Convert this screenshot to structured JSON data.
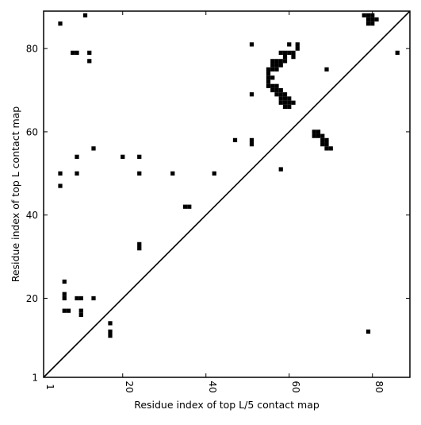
{
  "chart_data": {
    "type": "scatter",
    "xlabel": "Residue index of top L/5 contact map",
    "ylabel": "Residue index of top L contact map",
    "xlim": [
      1,
      89
    ],
    "ylim": [
      1,
      89
    ],
    "x_ticks": [
      1,
      20,
      40,
      60,
      80
    ],
    "y_ticks": [
      1,
      20,
      40,
      60,
      80
    ],
    "marker": "filled-square",
    "marker_color": "#000000",
    "diagonal_line": true,
    "series": [
      {
        "region": "above-diagonal",
        "points": [
          [
            5,
            86
          ],
          [
            11,
            88
          ],
          [
            9,
            79
          ],
          [
            8,
            79
          ],
          [
            12,
            79
          ],
          [
            12,
            77
          ],
          [
            5,
            50
          ],
          [
            9,
            54
          ],
          [
            13,
            56
          ],
          [
            9,
            50
          ],
          [
            5,
            47
          ],
          [
            20,
            54
          ],
          [
            24,
            54
          ],
          [
            24,
            50
          ],
          [
            32,
            50
          ],
          [
            42,
            50
          ],
          [
            24,
            33
          ],
          [
            24,
            32
          ],
          [
            35,
            42
          ],
          [
            36,
            42
          ],
          [
            6,
            24
          ],
          [
            6,
            21
          ],
          [
            6,
            20
          ],
          [
            6,
            17
          ],
          [
            7,
            17
          ],
          [
            9,
            20
          ],
          [
            10,
            20
          ],
          [
            10,
            17
          ],
          [
            10,
            16
          ],
          [
            13,
            20
          ],
          [
            17,
            14
          ],
          [
            17,
            12
          ],
          [
            17,
            11
          ],
          [
            47,
            58
          ],
          [
            51,
            58
          ],
          [
            51,
            57
          ],
          [
            51,
            81
          ],
          [
            51,
            69
          ],
          [
            55,
            75
          ],
          [
            55,
            74
          ],
          [
            55,
            73
          ],
          [
            55,
            72
          ],
          [
            55,
            71
          ],
          [
            56,
            77
          ],
          [
            56,
            76
          ],
          [
            56,
            75
          ],
          [
            56,
            73
          ],
          [
            56,
            71
          ],
          [
            56,
            70
          ],
          [
            57,
            77
          ],
          [
            57,
            76
          ],
          [
            57,
            75
          ],
          [
            57,
            71
          ],
          [
            57,
            70
          ],
          [
            57,
            69
          ],
          [
            58,
            77
          ],
          [
            58,
            76
          ],
          [
            58,
            70
          ],
          [
            58,
            69
          ],
          [
            58,
            68
          ],
          [
            58,
            67
          ],
          [
            58,
            79
          ],
          [
            59,
            79
          ],
          [
            59,
            78
          ],
          [
            59,
            77
          ],
          [
            59,
            69
          ],
          [
            59,
            68
          ],
          [
            59,
            67
          ],
          [
            59,
            66
          ],
          [
            60,
            81
          ],
          [
            60,
            79
          ],
          [
            60,
            68
          ],
          [
            60,
            67
          ],
          [
            60,
            66
          ],
          [
            61,
            79
          ],
          [
            61,
            78
          ],
          [
            61,
            67
          ],
          [
            62,
            81
          ],
          [
            62,
            80
          ],
          [
            58,
            51
          ],
          [
            66,
            60
          ],
          [
            67,
            60
          ],
          [
            66,
            59
          ],
          [
            67,
            59
          ],
          [
            68,
            59
          ],
          [
            68,
            58
          ],
          [
            68,
            57
          ],
          [
            69,
            58
          ],
          [
            69,
            57
          ],
          [
            69,
            56
          ],
          [
            70,
            56
          ],
          [
            69,
            75
          ],
          [
            78,
            88
          ],
          [
            79,
            88
          ],
          [
            80,
            88
          ],
          [
            79,
            87
          ],
          [
            80,
            87
          ],
          [
            81,
            87
          ],
          [
            79,
            86
          ],
          [
            80,
            86
          ],
          [
            86,
            79
          ]
        ]
      },
      {
        "region": "below-diagonal",
        "points": [
          [
            79,
            12
          ]
        ]
      }
    ]
  }
}
